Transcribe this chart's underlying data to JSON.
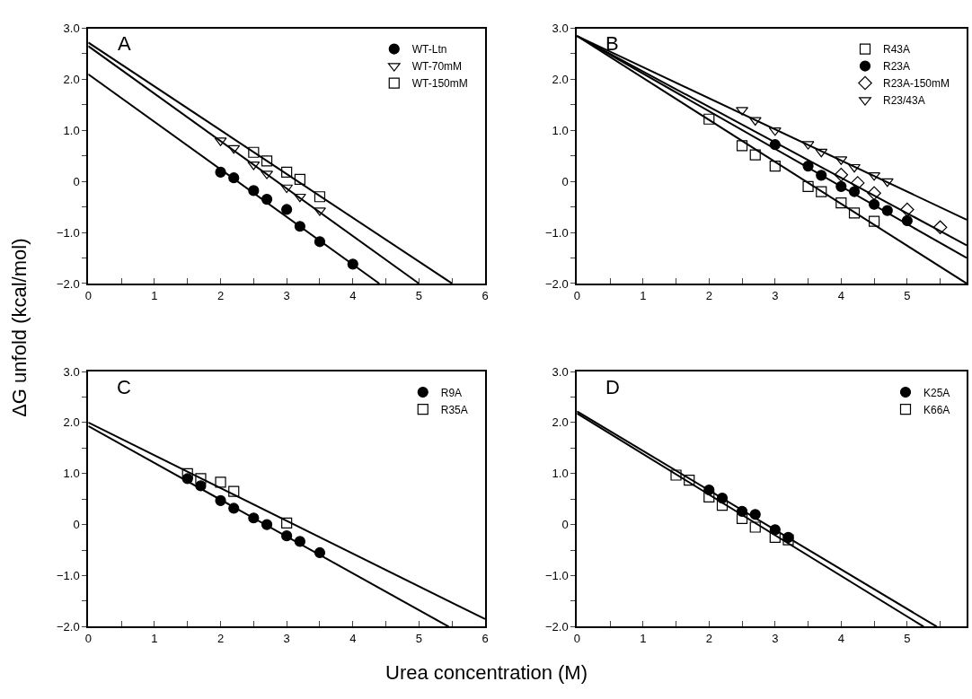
{
  "chart_data": [
    {
      "type": "scatter",
      "title": "A",
      "ylabel": "ΔG unfold (kcal/mol)",
      "xlim": [
        0,
        6
      ],
      "ylim": [
        -2,
        3
      ],
      "legend": "top right",
      "line_style": "solid",
      "xticks": [
        0,
        {
          "value": 0.5,
          "label": null
        },
        1,
        {
          "value": 1.5,
          "label": null
        },
        2,
        {
          "value": 2.5,
          "label": null
        },
        3,
        {
          "value": 3.5,
          "label": null
        },
        4,
        {
          "value": 4.5,
          "label": null
        },
        5,
        {
          "value": 5.5,
          "label": null
        },
        6
      ],
      "yticks": [
        {
          "value": -2,
          "label": "−2.0"
        },
        {
          "value": -1.5,
          "label": null
        },
        {
          "value": -1,
          "label": "−1.0"
        },
        {
          "value": -0.5,
          "label": null
        },
        0,
        {
          "value": 0.5,
          "label": null
        },
        {
          "value": 1,
          "label": "1.0"
        },
        {
          "value": 1.5,
          "label": null
        },
        {
          "value": 2,
          "label": "2.0"
        },
        {
          "value": 2.5,
          "label": null
        },
        {
          "value": 3,
          "label": "3.0"
        }
      ],
      "series": [
        {
          "name": "WT-Ltn",
          "color": "#000000",
          "marker": "circle",
          "x": [
            2,
            2.2,
            2.5,
            2.7,
            3,
            3.2,
            3.5,
            4
          ],
          "values": [
            0.18,
            0.07,
            -0.18,
            -0.35,
            -0.55,
            -0.88,
            -1.18,
            -1.62
          ]
        },
        {
          "name": "WT-70mM",
          "color": "#000000",
          "marker": "triangle",
          "x": [
            2,
            2.2,
            2.5,
            2.7,
            3,
            3.2,
            3.5
          ],
          "values": [
            0.8,
            0.65,
            0.33,
            0.15,
            -0.12,
            -0.3,
            -0.57
          ]
        },
        {
          "name": "WT-150mM",
          "color": "#000000",
          "marker": "square",
          "x": [
            2.5,
            2.7,
            3,
            3.2,
            3.5
          ],
          "values": [
            0.57,
            0.4,
            0.18,
            0.04,
            -0.3
          ]
        },
        {
          "type": "line",
          "color": "#000000",
          "x": [
            0,
            4.4
          ],
          "values": [
            2.1,
            -2
          ]
        },
        {
          "type": "line",
          "color": "#000000",
          "x": [
            0,
            5.0
          ],
          "values": [
            2.65,
            -2
          ]
        },
        {
          "type": "line",
          "color": "#000000",
          "x": [
            0,
            5.5
          ],
          "values": [
            2.72,
            -2
          ]
        }
      ]
    },
    {
      "type": "scatter",
      "title": "B",
      "xlim": [
        0,
        5.9
      ],
      "ylim": [
        -2,
        3
      ],
      "legend": "top right",
      "line_style": "solid",
      "xticks": [
        0,
        {
          "value": 0.5,
          "label": null
        },
        1,
        {
          "value": 1.5,
          "label": null
        },
        2,
        {
          "value": 2.5,
          "label": null
        },
        3,
        {
          "value": 3.5,
          "label": null
        },
        4,
        {
          "value": 4.5,
          "label": null
        },
        5,
        {
          "value": 5.5,
          "label": null
        }
      ],
      "yticks": [
        {
          "value": -2,
          "label": "−2.0"
        },
        {
          "value": -1.5,
          "label": null
        },
        {
          "value": -1,
          "label": "−1.0"
        },
        {
          "value": -0.5,
          "label": null
        },
        0,
        {
          "value": 0.5,
          "label": null
        },
        {
          "value": 1,
          "label": "1.0"
        },
        {
          "value": 1.5,
          "label": null
        },
        {
          "value": 2,
          "label": "2.0"
        },
        {
          "value": 2.5,
          "label": null
        },
        {
          "value": 3,
          "label": "3.0"
        }
      ],
      "series": [
        {
          "name": "R43A",
          "color": "#000000",
          "marker": "square",
          "x": [
            2,
            2.5,
            2.7,
            3,
            3.5,
            3.7,
            4,
            4.2,
            4.5
          ],
          "values": [
            1.22,
            0.7,
            0.52,
            0.3,
            -0.1,
            -0.2,
            -0.42,
            -0.62,
            -0.78
          ]
        },
        {
          "name": "R23A",
          "color": "#000000",
          "marker": "circle",
          "x": [
            3,
            3.5,
            3.7,
            4,
            4.2,
            4.5,
            4.7,
            5
          ],
          "values": [
            0.72,
            0.3,
            0.12,
            -0.1,
            -0.2,
            -0.45,
            -0.57,
            -0.77
          ]
        },
        {
          "name": "R23A-150mM",
          "color": "#000000",
          "marker": "diamond",
          "x": [
            4,
            4.25,
            4.5,
            5,
            5.5
          ],
          "values": [
            0.13,
            -0.03,
            -0.23,
            -0.55,
            -0.9
          ]
        },
        {
          "name": "R23/43A",
          "color": "#000000",
          "marker": "triangle",
          "x": [
            2.5,
            2.7,
            3,
            3.5,
            3.7,
            4,
            4.2,
            4.5,
            4.7
          ],
          "values": [
            1.4,
            1.2,
            1.0,
            0.73,
            0.58,
            0.43,
            0.28,
            0.12,
            0.0
          ]
        },
        {
          "type": "line",
          "color": "#000000",
          "x": [
            0,
            5.9
          ],
          "values": [
            2.85,
            -2
          ]
        },
        {
          "type": "line",
          "color": "#000000",
          "x": [
            0,
            5.9
          ],
          "values": [
            2.85,
            -1.5
          ]
        },
        {
          "type": "line",
          "color": "#000000",
          "x": [
            0,
            5.9
          ],
          "values": [
            2.85,
            -1.25
          ]
        },
        {
          "type": "line",
          "color": "#000000",
          "x": [
            0,
            5.9
          ],
          "values": [
            2.85,
            -0.75
          ]
        }
      ]
    },
    {
      "type": "scatter",
      "title": "C",
      "xlabel": "Urea concentration (M)",
      "xlim": [
        0,
        6
      ],
      "ylim": [
        -2,
        3
      ],
      "legend": "top right",
      "line_style": "solid",
      "xticks": [
        0,
        {
          "value": 0.5,
          "label": null
        },
        1,
        {
          "value": 1.5,
          "label": null
        },
        2,
        {
          "value": 2.5,
          "label": null
        },
        3,
        {
          "value": 3.5,
          "label": null
        },
        4,
        {
          "value": 4.5,
          "label": null
        },
        5,
        {
          "value": 5.5,
          "label": null
        },
        6
      ],
      "yticks": [
        {
          "value": -2,
          "label": "−2.0"
        },
        {
          "value": -1.5,
          "label": null
        },
        {
          "value": -1,
          "label": "−1.0"
        },
        {
          "value": -0.5,
          "label": null
        },
        0,
        {
          "value": 0.5,
          "label": null
        },
        {
          "value": 1,
          "label": "1.0"
        },
        {
          "value": 1.5,
          "label": null
        },
        {
          "value": 2,
          "label": "2.0"
        },
        {
          "value": 2.5,
          "label": null
        },
        {
          "value": 3,
          "label": "3.0"
        }
      ],
      "series": [
        {
          "name": "R9A",
          "color": "#000000",
          "marker": "circle",
          "x": [
            1.5,
            1.7,
            2,
            2.2,
            2.5,
            2.7,
            3,
            3.2,
            3.5
          ],
          "values": [
            0.9,
            0.76,
            0.47,
            0.32,
            0.13,
            0.0,
            -0.22,
            -0.33,
            -0.55
          ]
        },
        {
          "name": "R35A",
          "color": "#000000",
          "marker": "square",
          "x": [
            1.5,
            1.7,
            2,
            2.2,
            3
          ],
          "values": [
            1.0,
            0.9,
            0.83,
            0.65,
            0.03
          ]
        },
        {
          "type": "line",
          "color": "#000000",
          "x": [
            0,
            5.45
          ],
          "values": [
            1.93,
            -2
          ]
        },
        {
          "type": "line",
          "color": "#000000",
          "x": [
            0,
            6
          ],
          "values": [
            2.0,
            -1.85
          ]
        }
      ]
    },
    {
      "type": "scatter",
      "title": "D",
      "xlim": [
        0,
        5.9
      ],
      "ylim": [
        -2,
        3
      ],
      "legend": "top right",
      "line_style": "solid",
      "xticks": [
        0,
        {
          "value": 0.5,
          "label": null
        },
        1,
        {
          "value": 1.5,
          "label": null
        },
        2,
        {
          "value": 2.5,
          "label": null
        },
        3,
        {
          "value": 3.5,
          "label": null
        },
        4,
        {
          "value": 4.5,
          "label": null
        },
        5,
        {
          "value": 5.5,
          "label": null
        }
      ],
      "yticks": [
        {
          "value": -2,
          "label": "−2.0"
        },
        {
          "value": -1.5,
          "label": null
        },
        {
          "value": -1,
          "label": "−1.0"
        },
        {
          "value": -0.5,
          "label": null
        },
        0,
        {
          "value": 0.5,
          "label": null
        },
        {
          "value": 1,
          "label": "1.0"
        },
        {
          "value": 1.5,
          "label": null
        },
        {
          "value": 2,
          "label": "2.0"
        },
        {
          "value": 2.5,
          "label": null
        },
        {
          "value": 3,
          "label": "3.0"
        }
      ],
      "series": [
        {
          "name": "K25A",
          "color": "#000000",
          "marker": "circle",
          "x": [
            2,
            2.2,
            2.5,
            2.7,
            3,
            3.2
          ],
          "values": [
            0.68,
            0.52,
            0.26,
            0.2,
            -0.1,
            -0.25
          ]
        },
        {
          "name": "K66A",
          "color": "#000000",
          "marker": "square",
          "x": [
            1.5,
            1.7,
            2,
            2.2,
            2.5,
            2.7,
            3,
            3.2
          ],
          "values": [
            0.97,
            0.87,
            0.54,
            0.38,
            0.12,
            -0.05,
            -0.25,
            -0.3
          ]
        },
        {
          "type": "line",
          "color": "#000000",
          "x": [
            0,
            5.45
          ],
          "values": [
            2.22,
            -2
          ]
        },
        {
          "type": "line",
          "color": "#000000",
          "x": [
            0,
            5.25
          ],
          "values": [
            2.18,
            -2
          ]
        }
      ]
    }
  ]
}
